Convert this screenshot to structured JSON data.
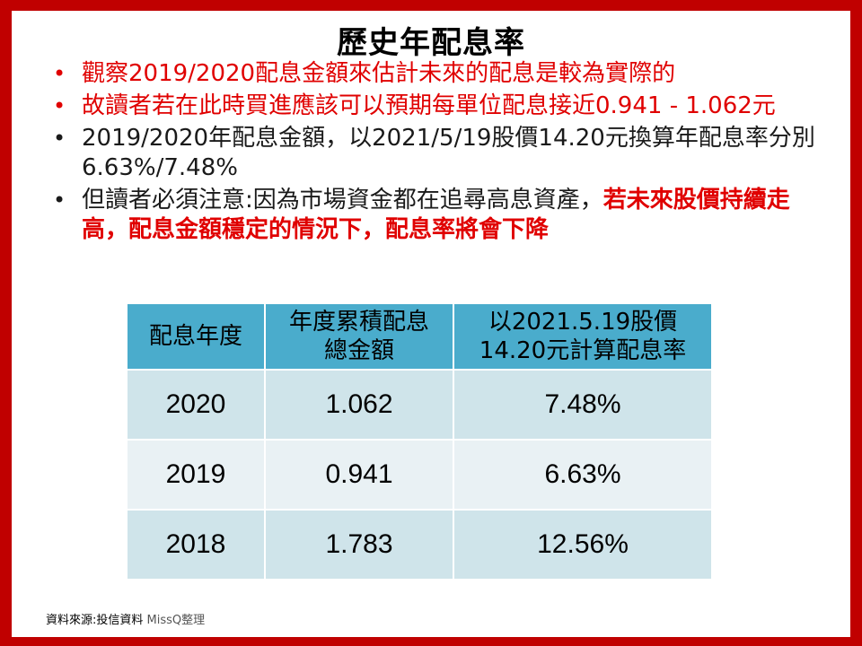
{
  "title": "歷史年配息率",
  "bullets": [
    {
      "text": "觀察2019/2020配息金額來估計未來的配息是較為實際的",
      "color": "red"
    },
    {
      "text": "故讀者若在此時買進應該可以預期每單位配息接近0.941 - 1.062元",
      "color": "red"
    },
    {
      "text": "2019/2020年配息金額，以2021/5/19股價14.20元換算年配息率分別6.63%/7.48%",
      "color": "black"
    },
    {
      "text": "但讀者必須注意:因為市場資金都在追尋高息資產，",
      "emphasis": "若未來股價持續走高，配息金額穩定的情況下，配息率將會下降",
      "color": "black"
    }
  ],
  "table": {
    "headers": [
      [
        "配息年度"
      ],
      [
        "年度累積配息",
        "總金額"
      ],
      [
        "以2021.5.19股價",
        "14.20元計算配息率"
      ]
    ],
    "rows": [
      [
        "2020",
        "1.062",
        "7.48%"
      ],
      [
        "2019",
        "0.941",
        "6.63%"
      ],
      [
        "2018",
        "1.783",
        "12.56%"
      ]
    ]
  },
  "source": {
    "label": "資料來源:投信資料 ",
    "author": "MissQ整理"
  },
  "colors": {
    "frame": "#c00000",
    "header": "#4aaccc",
    "row_dark": "#cfe4ea",
    "row_light": "#e9f1f4",
    "accent": "#e00000"
  }
}
